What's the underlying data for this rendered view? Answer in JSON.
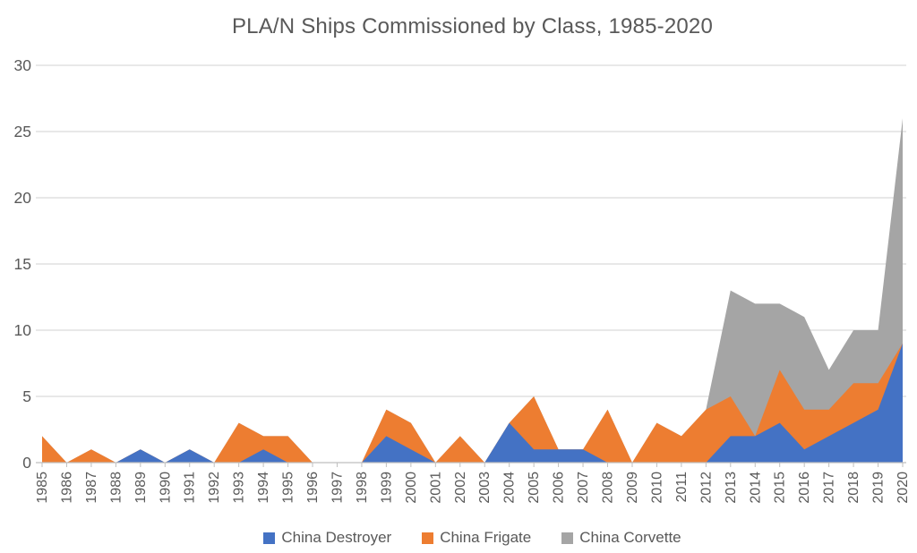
{
  "title": "PLA/N Ships Commissioned by Class, 1985-2020",
  "chart_data": {
    "type": "area",
    "stacked": true,
    "title": "PLA/N Ships Commissioned by Class, 1985-2020",
    "xlabel": "",
    "ylabel": "",
    "ylim": [
      0,
      30
    ],
    "y_ticks": [
      0,
      5,
      10,
      15,
      20,
      25,
      30
    ],
    "grid": "horizontal",
    "legend_position": "bottom",
    "categories": [
      "1985",
      "1986",
      "1987",
      "1988",
      "1989",
      "1990",
      "1991",
      "1992",
      "1993",
      "1994",
      "1995",
      "1996",
      "1997",
      "1998",
      "1999",
      "2000",
      "2001",
      "2002",
      "2003",
      "2004",
      "2005",
      "2006",
      "2007",
      "2008",
      "2009",
      "2010",
      "2011",
      "2012",
      "2013",
      "2014",
      "2015",
      "2016",
      "2017",
      "2018",
      "2019",
      "2020"
    ],
    "series": [
      {
        "name": "China Destroyer",
        "color": "#4472C4",
        "values": [
          0,
          0,
          0,
          0,
          1,
          0,
          1,
          0,
          0,
          1,
          0,
          0,
          0,
          0,
          2,
          1,
          0,
          0,
          0,
          3,
          1,
          1,
          1,
          0,
          0,
          0,
          0,
          0,
          2,
          2,
          3,
          1,
          2,
          3,
          4,
          9
        ]
      },
      {
        "name": "China Frigate",
        "color": "#ED7D31",
        "values": [
          2,
          0,
          1,
          0,
          0,
          0,
          0,
          0,
          3,
          1,
          2,
          0,
          0,
          0,
          2,
          2,
          0,
          2,
          0,
          0,
          4,
          0,
          0,
          4,
          0,
          3,
          2,
          4,
          3,
          0,
          4,
          3,
          2,
          3,
          2,
          0
        ]
      },
      {
        "name": "China Corvette",
        "color": "#A5A5A5",
        "values": [
          0,
          0,
          0,
          0,
          0,
          0,
          0,
          0,
          0,
          0,
          0,
          0,
          0,
          0,
          0,
          0,
          0,
          0,
          0,
          0,
          0,
          0,
          0,
          0,
          0,
          0,
          0,
          0,
          8,
          10,
          5,
          7,
          3,
          4,
          4,
          17
        ]
      }
    ],
    "colors": {
      "axis_text": "#595959",
      "gridline": "#D9D9D9",
      "axis_line": "#BFBFBF"
    }
  }
}
